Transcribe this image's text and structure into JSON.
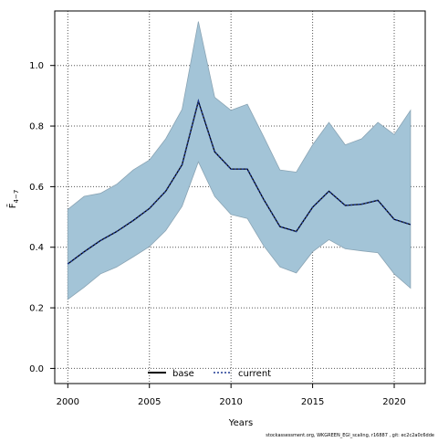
{
  "chart_data": {
    "type": "area",
    "xlabel": "Years",
    "ylabel": "F̄",
    "ylabel_subscript": "4−7",
    "xlim": [
      1999.2,
      2021.9
    ],
    "ylim": [
      -0.05,
      1.18
    ],
    "x_ticks": [
      2000,
      2005,
      2010,
      2015,
      2020
    ],
    "y_ticks": [
      0.0,
      0.2,
      0.4,
      0.6,
      0.8,
      1.0
    ],
    "x_tick_labels": [
      "2000",
      "2005",
      "2010",
      "2015",
      "2020"
    ],
    "y_tick_labels": [
      "0.0",
      "0.2",
      "0.4",
      "0.6",
      "0.8",
      "1.0"
    ],
    "grid": true,
    "legend_position": "bottom-center",
    "x": [
      2000,
      2001,
      2002,
      2003,
      2004,
      2005,
      2006,
      2007,
      2008,
      2009,
      2010,
      2011,
      2012,
      2013,
      2014,
      2015,
      2016,
      2017,
      2018,
      2019,
      2020,
      2021
    ],
    "band": {
      "upper": [
        0.525,
        0.568,
        0.578,
        0.608,
        0.655,
        0.688,
        0.758,
        0.855,
        1.145,
        0.895,
        0.852,
        0.872,
        0.765,
        0.655,
        0.648,
        0.738,
        0.812,
        0.738,
        0.758,
        0.812,
        0.772,
        0.852
      ],
      "lower": [
        0.228,
        0.268,
        0.312,
        0.335,
        0.368,
        0.402,
        0.455,
        0.535,
        0.682,
        0.568,
        0.508,
        0.495,
        0.405,
        0.335,
        0.315,
        0.385,
        0.425,
        0.395,
        0.388,
        0.382,
        0.312,
        0.265
      ],
      "fill_color": "#a3c4d7",
      "edge_color": "#8aa4b4"
    },
    "series": [
      {
        "name": "base",
        "values": [
          0.345,
          0.385,
          0.422,
          0.452,
          0.488,
          0.528,
          0.585,
          0.672,
          0.882,
          0.715,
          0.658,
          0.658,
          0.558,
          0.468,
          0.452,
          0.532,
          0.585,
          0.538,
          0.542,
          0.555,
          0.492,
          0.475
        ],
        "color": "#000000",
        "style": "solid"
      },
      {
        "name": "current",
        "values": [
          0.345,
          0.385,
          0.422,
          0.452,
          0.488,
          0.528,
          0.585,
          0.672,
          0.882,
          0.715,
          0.658,
          0.658,
          0.558,
          0.468,
          0.452,
          0.532,
          0.585,
          0.538,
          0.542,
          0.555,
          0.492,
          0.475
        ],
        "color": "#1f3a93",
        "style": "dotted"
      }
    ]
  },
  "footer": {
    "text": "stockassessment.org, WKGREEN_EGI_scaling, r16887 , git: ec2c2a0c6dde"
  }
}
